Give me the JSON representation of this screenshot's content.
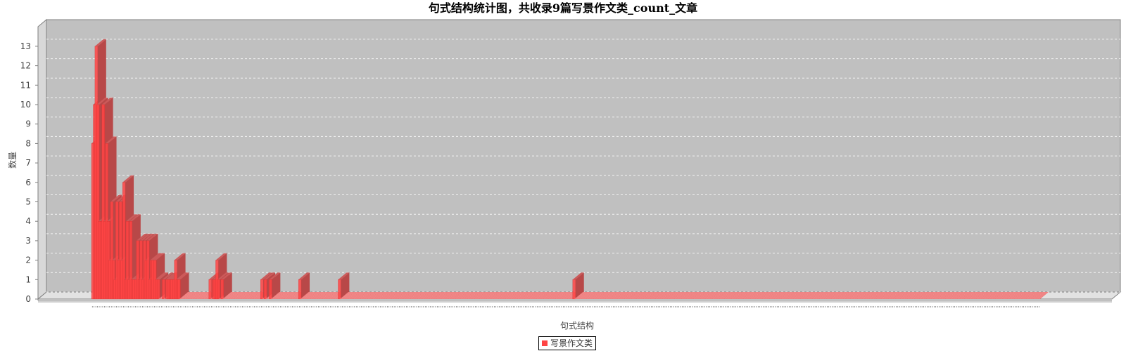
{
  "chart_data": {
    "type": "bar",
    "title": "句式结构统计图，共收录9篇写景作文类_count_文章",
    "xlabel": "句式结构",
    "ylabel": "数量",
    "ylim": [
      0,
      13
    ],
    "yticks": [
      0,
      1,
      2,
      3,
      4,
      5,
      6,
      7,
      8,
      9,
      10,
      11,
      12,
      13
    ],
    "grid": true,
    "legend_position": "bottom-center",
    "colors": {
      "bar": "#ff4444",
      "plot_background": "#c0c0c0"
    },
    "series": [
      {
        "name": "写景作文类",
        "values": [
          8,
          10,
          13,
          10,
          4,
          4,
          10,
          4,
          8,
          4,
          2,
          5,
          2,
          1,
          5,
          2,
          5,
          2,
          6,
          1,
          4,
          1,
          4,
          1,
          1,
          1,
          3,
          1,
          3,
          1,
          3,
          2,
          3,
          1,
          2,
          2,
          2,
          1,
          1,
          0,
          0,
          1,
          0,
          1,
          1,
          1,
          1,
          1,
          2,
          1,
          1,
          0,
          0,
          0,
          0,
          0,
          0,
          0,
          0,
          0,
          0,
          0,
          0,
          0,
          0,
          0,
          0,
          0,
          1,
          0,
          1,
          1,
          2,
          1,
          0,
          1,
          0,
          0,
          0,
          0,
          0,
          0,
          0,
          0,
          0,
          0,
          0,
          0,
          0,
          0,
          0,
          0,
          0,
          0,
          0,
          0,
          0,
          0,
          1,
          0,
          1,
          0,
          0,
          1,
          0,
          0,
          0,
          0,
          0,
          0,
          0,
          0,
          0,
          0,
          0,
          0,
          0,
          0,
          0,
          0,
          1,
          0,
          0,
          0,
          0,
          0,
          0,
          0,
          0,
          0,
          0,
          0,
          0,
          0,
          0,
          0,
          0,
          0,
          0,
          0,
          0,
          0,
          0,
          1,
          0,
          0,
          0,
          0,
          0,
          0,
          0,
          0,
          0,
          0,
          0,
          0,
          0,
          0,
          0,
          0,
          0,
          0,
          0,
          0,
          0,
          0,
          0,
          0,
          0,
          0,
          0,
          0,
          0,
          0,
          0,
          0,
          0,
          0,
          0,
          0,
          0,
          0,
          0,
          0,
          0,
          0,
          0,
          0,
          0,
          0,
          0,
          0,
          0,
          0,
          0,
          0,
          0,
          0,
          0,
          0,
          0,
          0,
          0,
          0,
          0,
          0,
          0,
          0,
          0,
          0,
          0,
          0,
          0,
          0,
          0,
          0,
          0,
          0,
          0,
          0,
          0,
          0,
          0,
          0,
          0,
          0,
          0,
          0,
          0,
          0,
          0,
          0,
          0,
          0,
          0,
          0,
          0,
          0,
          0,
          0,
          0,
          0,
          0,
          0,
          0,
          0,
          0,
          0,
          0,
          0,
          0,
          0,
          0,
          0,
          0,
          0,
          0,
          0,
          0,
          0,
          0,
          0,
          0,
          0,
          0,
          0,
          0,
          0,
          0,
          0,
          0,
          0,
          0,
          0,
          0,
          0,
          0,
          0,
          0,
          1,
          0,
          0,
          0,
          0,
          0,
          0,
          0,
          0,
          0,
          0,
          0,
          0,
          0,
          0,
          0,
          0,
          0,
          0,
          0,
          0,
          0,
          0,
          0,
          0,
          0,
          0,
          0,
          0,
          0,
          0,
          0,
          0,
          0,
          0,
          0,
          0,
          0,
          0,
          0,
          0,
          0,
          0,
          0,
          0,
          0,
          0,
          0,
          0,
          0,
          0,
          0,
          0,
          0,
          0,
          0,
          0,
          0,
          0,
          0,
          0,
          0,
          0,
          0,
          0,
          0,
          0,
          0,
          0,
          0,
          0,
          0,
          0,
          0,
          0,
          0,
          0,
          0,
          0,
          0,
          0,
          0,
          0,
          0,
          0,
          0,
          0,
          0,
          0,
          0,
          0,
          0,
          0,
          0,
          0,
          0,
          0,
          0,
          0,
          0,
          0,
          0,
          0,
          0,
          0,
          0,
          0,
          0,
          0,
          0,
          0,
          0,
          0,
          0,
          0,
          0,
          0,
          0,
          0,
          0,
          0,
          0,
          0,
          0,
          0,
          0,
          0,
          0,
          0,
          0,
          0,
          0,
          0,
          0,
          0,
          0,
          0,
          0,
          0,
          0,
          0,
          0,
          0,
          0,
          0,
          0,
          0,
          0,
          0,
          0,
          0,
          0,
          0,
          0,
          0,
          0,
          0,
          0,
          0,
          0,
          0,
          0,
          0,
          0,
          0,
          0,
          0,
          0,
          0,
          0,
          0,
          0,
          0,
          0,
          0,
          0,
          0,
          0,
          0,
          0,
          0,
          0,
          0,
          0,
          0,
          0,
          0,
          0,
          0,
          0,
          0,
          0,
          0,
          0,
          0,
          0,
          0,
          0,
          0,
          0,
          0,
          0,
          0,
          0,
          0,
          0,
          0,
          0,
          0,
          0,
          0,
          0,
          0,
          0,
          0,
          0,
          0,
          0,
          0,
          0,
          0,
          0,
          0,
          0,
          0,
          0,
          0,
          0,
          0,
          0,
          0,
          0,
          0,
          0,
          0,
          0,
          0,
          0,
          0,
          0,
          0,
          0,
          0,
          0,
          0,
          0,
          0,
          0,
          0,
          0,
          0,
          0,
          0,
          0,
          0,
          0,
          0,
          0,
          0,
          0,
          0,
          0,
          0,
          0,
          0,
          0,
          0,
          0,
          0,
          0,
          0
        ]
      }
    ]
  }
}
